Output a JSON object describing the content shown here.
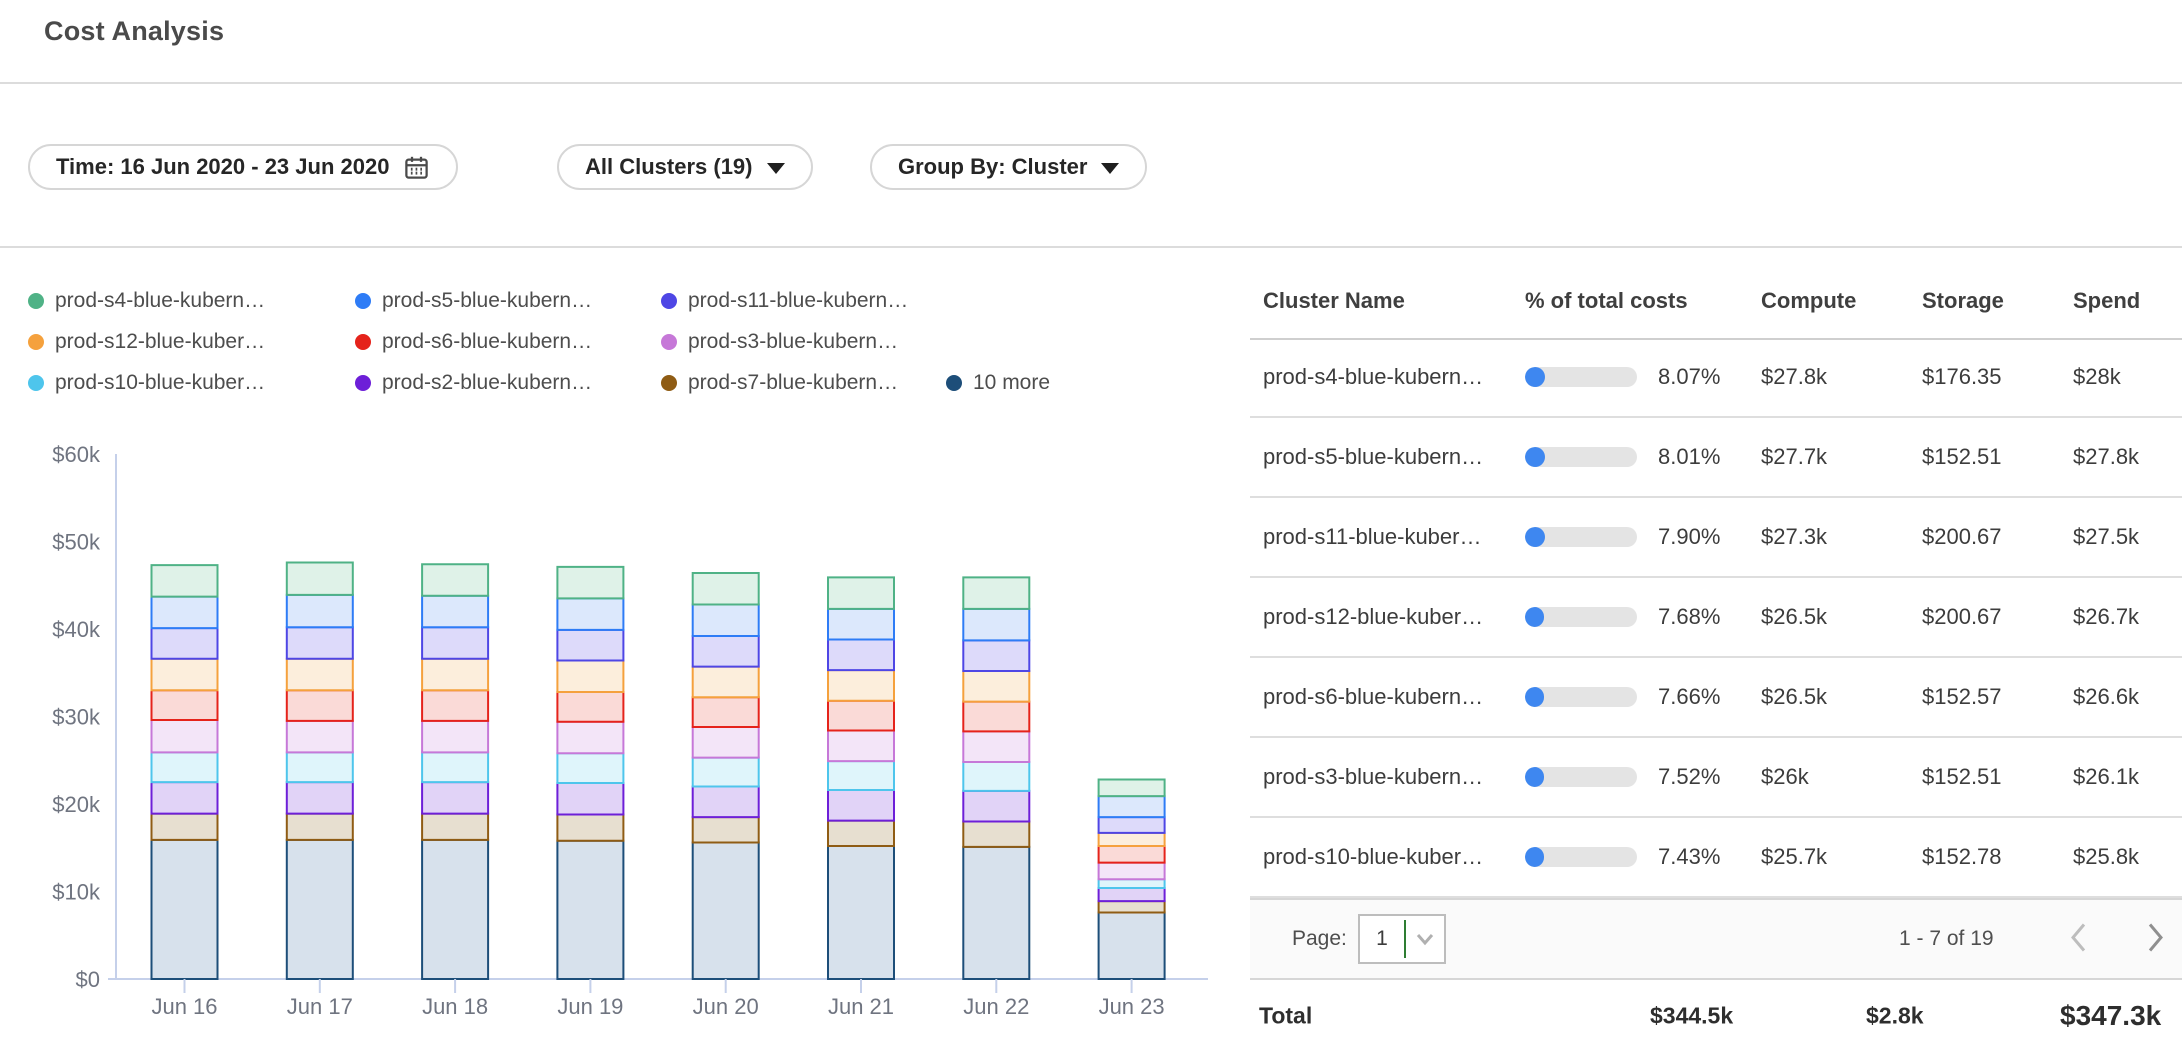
{
  "header": {
    "title": "Cost Analysis"
  },
  "filters": {
    "time": {
      "label": "Time: 16 Jun 2020 - 23 Jun 2020"
    },
    "clusters": {
      "label": "All Clusters (19)"
    },
    "group_by": {
      "label": "Group By: Cluster"
    }
  },
  "legend": {
    "items": [
      {
        "label": "prod-s4-blue-kubern…",
        "color": "#4fb286"
      },
      {
        "label": "prod-s5-blue-kubern…",
        "color": "#2e7cf6"
      },
      {
        "label": "prod-s11-blue-kubern…",
        "color": "#4e46e5"
      },
      {
        "label": "prod-s12-blue-kuber…",
        "color": "#f5a13d"
      },
      {
        "label": "prod-s6-blue-kubern…",
        "color": "#e5231b"
      },
      {
        "label": "prod-s3-blue-kubern…",
        "color": "#c678d8"
      },
      {
        "label": "prod-s10-blue-kuber…",
        "color": "#4ec5ec"
      },
      {
        "label": "prod-s2-blue-kubern…",
        "color": "#6d1fd8"
      },
      {
        "label": "prod-s7-blue-kubern…",
        "color": "#8f5c14"
      },
      {
        "label": "10 more",
        "color": "#1d4e79"
      }
    ]
  },
  "chart_data": {
    "type": "bar",
    "stacked": true,
    "title": "",
    "xlabel": "",
    "ylabel": "",
    "units": "USD thousands per day",
    "ylim": [
      0,
      60
    ],
    "y_tick_labels": [
      "$0",
      "$10k",
      "$20k",
      "$30k",
      "$40k",
      "$50k",
      "$60k"
    ],
    "categories": [
      "Jun 16",
      "Jun 17",
      "Jun 18",
      "Jun 19",
      "Jun 20",
      "Jun 21",
      "Jun 22",
      "Jun 23"
    ],
    "legend_position": "top",
    "grid": false,
    "series": [
      {
        "name": "10 more",
        "color": "#1d4e79",
        "fill": "#d7e1ec",
        "values": [
          15.9,
          15.9,
          15.9,
          15.8,
          15.6,
          15.2,
          15.1,
          7.6
        ]
      },
      {
        "name": "prod-s7-blue-kubern…",
        "color": "#8f5c14",
        "fill": "#e7dfd0",
        "values": [
          3.0,
          3.0,
          3.0,
          3.0,
          2.9,
          2.9,
          2.9,
          1.3
        ]
      },
      {
        "name": "prod-s2-blue-kubern…",
        "color": "#6d1fd8",
        "fill": "#e1d3f7",
        "values": [
          3.6,
          3.6,
          3.6,
          3.6,
          3.5,
          3.5,
          3.5,
          1.5
        ]
      },
      {
        "name": "prod-s10-blue-kuber…",
        "color": "#4ec5ec",
        "fill": "#dff5fb",
        "values": [
          3.4,
          3.4,
          3.4,
          3.4,
          3.3,
          3.3,
          3.3,
          1.0
        ]
      },
      {
        "name": "prod-s3-blue-kubern…",
        "color": "#c678d8",
        "fill": "#f3e5f8",
        "values": [
          3.7,
          3.6,
          3.6,
          3.6,
          3.5,
          3.5,
          3.5,
          1.9
        ]
      },
      {
        "name": "prod-s6-blue-kubern…",
        "color": "#e5231b",
        "fill": "#fadad7",
        "values": [
          3.4,
          3.5,
          3.5,
          3.4,
          3.4,
          3.4,
          3.4,
          1.9
        ]
      },
      {
        "name": "prod-s12-blue-kuber…",
        "color": "#f5a13d",
        "fill": "#fceedc",
        "values": [
          3.6,
          3.6,
          3.6,
          3.6,
          3.5,
          3.5,
          3.5,
          1.5
        ]
      },
      {
        "name": "prod-s11-blue-kubern…",
        "color": "#4e46e5",
        "fill": "#dddafa",
        "values": [
          3.5,
          3.6,
          3.6,
          3.5,
          3.5,
          3.5,
          3.5,
          1.8
        ]
      },
      {
        "name": "prod-s5-blue-kubern…",
        "color": "#2e7cf6",
        "fill": "#dce8fc",
        "values": [
          3.6,
          3.7,
          3.6,
          3.6,
          3.6,
          3.5,
          3.6,
          2.4
        ]
      },
      {
        "name": "prod-s4-blue-kubern…",
        "color": "#4fb286",
        "fill": "#dff2e8",
        "values": [
          3.6,
          3.7,
          3.6,
          3.6,
          3.6,
          3.6,
          3.6,
          1.9
        ]
      }
    ]
  },
  "table": {
    "columns": [
      "Cluster Name",
      "% of total costs",
      "Compute",
      "Storage",
      "Spend"
    ],
    "rows": [
      {
        "name": "prod-s4-blue-kubern…",
        "pct": "8.07%",
        "pct_value": 8.07,
        "compute": "$27.8k",
        "storage": "$176.35",
        "spend": "$28k"
      },
      {
        "name": "prod-s5-blue-kubern…",
        "pct": "8.01%",
        "pct_value": 8.01,
        "compute": "$27.7k",
        "storage": "$152.51",
        "spend": "$27.8k"
      },
      {
        "name": "prod-s11-blue-kuber…",
        "pct": "7.90%",
        "pct_value": 7.9,
        "compute": "$27.3k",
        "storage": "$200.67",
        "spend": "$27.5k"
      },
      {
        "name": "prod-s12-blue-kuber…",
        "pct": "7.68%",
        "pct_value": 7.68,
        "compute": "$26.5k",
        "storage": "$200.67",
        "spend": "$26.7k"
      },
      {
        "name": "prod-s6-blue-kubern…",
        "pct": "7.66%",
        "pct_value": 7.66,
        "compute": "$26.5k",
        "storage": "$152.57",
        "spend": "$26.6k"
      },
      {
        "name": "prod-s3-blue-kubern…",
        "pct": "7.52%",
        "pct_value": 7.52,
        "compute": "$26k",
        "storage": "$152.51",
        "spend": "$26.1k"
      },
      {
        "name": "prod-s10-blue-kuber…",
        "pct": "7.43%",
        "pct_value": 7.43,
        "compute": "$25.7k",
        "storage": "$152.78",
        "spend": "$25.8k"
      }
    ],
    "pagination": {
      "label": "Page:",
      "page": "1",
      "range": "1 - 7 of 19"
    },
    "total": {
      "label": "Total",
      "compute": "$344.5k",
      "storage": "$2.8k",
      "spend": "$347.3k"
    }
  },
  "colors": {
    "link": "#4596f4",
    "axis": "#c5d0ea",
    "tick_text": "#6f7480",
    "progress_fill": "#3e87f0",
    "progress_bg": "#e4e4e4",
    "page_cursor_green": "#2e7d32"
  }
}
